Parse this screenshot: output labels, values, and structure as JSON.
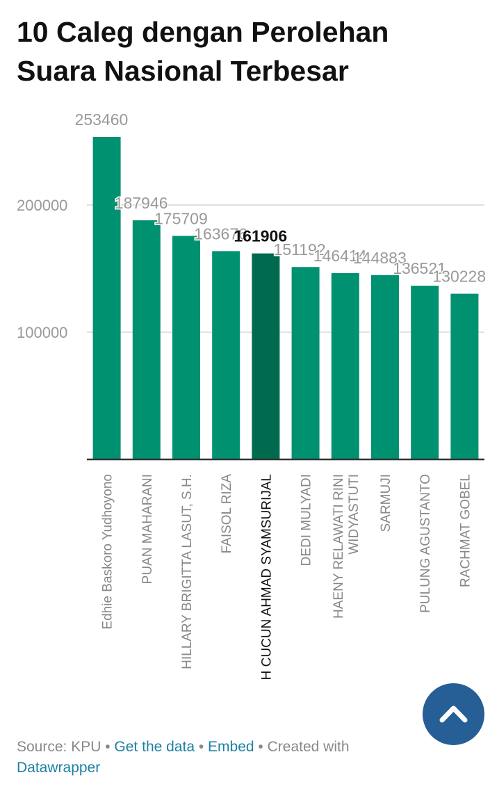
{
  "chart_data": {
    "type": "bar",
    "title": "10 Caleg dengan Perolehan Suara Nasional Terbesar",
    "categories": [
      "Edhie Baskoro Yudhoyono",
      "PUAN MAHARANI",
      "HILLARY BRIGITTA LASUT, S.H.",
      "FAISOL RIZA",
      "H CUCUN AHMAD SYAMSURIJAL",
      "DEDI MULYADI",
      "HAENY RELAWATI RINI WIDYASTUTI",
      "SARMUJI",
      "PULUNG AGUSTANTO",
      "RACHMAT GOBEL"
    ],
    "values": [
      253460,
      187946,
      175709,
      163676,
      161906,
      151192,
      146414,
      144883,
      136521,
      130228
    ],
    "highlight_index": 4,
    "yticks": [
      100000,
      200000
    ],
    "ylim": [
      0,
      253460
    ],
    "grid": true,
    "colors": {
      "bar": "#009171",
      "highlight": "#006a4f"
    }
  },
  "footer": {
    "source": "Source: KPU",
    "sep": " • ",
    "get_data": "Get the data",
    "embed": "Embed",
    "created": "Created with",
    "datawrapper": "Datawrapper"
  },
  "fab": {
    "icon": "chevron-up-icon",
    "color": "#265e96"
  }
}
